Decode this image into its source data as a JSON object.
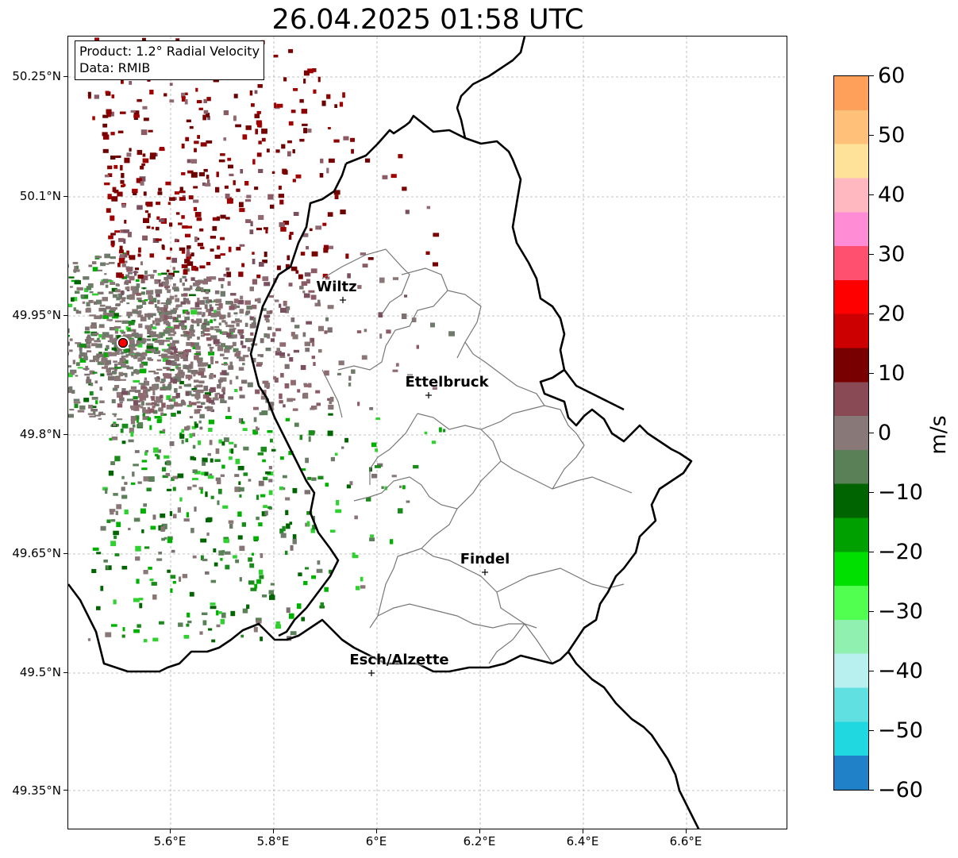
{
  "title": "26.04.2025 01:58 UTC",
  "info_box": {
    "product": "Product: 1.2° Radial Velocity",
    "source": "Data: RMIB"
  },
  "y_axis_ticks": [
    "50.25°N",
    "50.1°N",
    "49.95°N",
    "49.8°N",
    "49.65°N",
    "49.5°N",
    "49.35°N"
  ],
  "x_axis_ticks": [
    "5.6°E",
    "5.8°E",
    "6°E",
    "6.2°E",
    "6.4°E",
    "6.6°E"
  ],
  "cities": [
    {
      "name": "Wiltz",
      "lon": 5.93,
      "lat": 49.97
    },
    {
      "name": "Ettelbruck",
      "lon": 6.1,
      "lat": 49.85
    },
    {
      "name": "Findel",
      "lon": 6.21,
      "lat": 49.63
    },
    {
      "name": "Esch/Alzette",
      "lon": 5.99,
      "lat": 49.5
    }
  ],
  "colorbar": {
    "unit": "m/s",
    "ticks": [
      "60",
      "50",
      "40",
      "30",
      "20",
      "10",
      "0",
      "−10",
      "−20",
      "−30",
      "−40",
      "−50",
      "−60"
    ],
    "stops": [
      "#ffa05a",
      "#ffc07a",
      "#ffe29a",
      "#ffb8c0",
      "#ff8cd4",
      "#ff5070",
      "#ff0000",
      "#cc0000",
      "#780000",
      "#8a4a55",
      "#887878",
      "#5a8058",
      "#006400",
      "#00a000",
      "#00e000",
      "#50ff50",
      "#90f0b0",
      "#b8f0f0",
      "#60e0e0",
      "#20d8e0",
      "#2080c8"
    ]
  },
  "radar_site": {
    "lon": 5.5,
    "lat": 49.91
  }
}
